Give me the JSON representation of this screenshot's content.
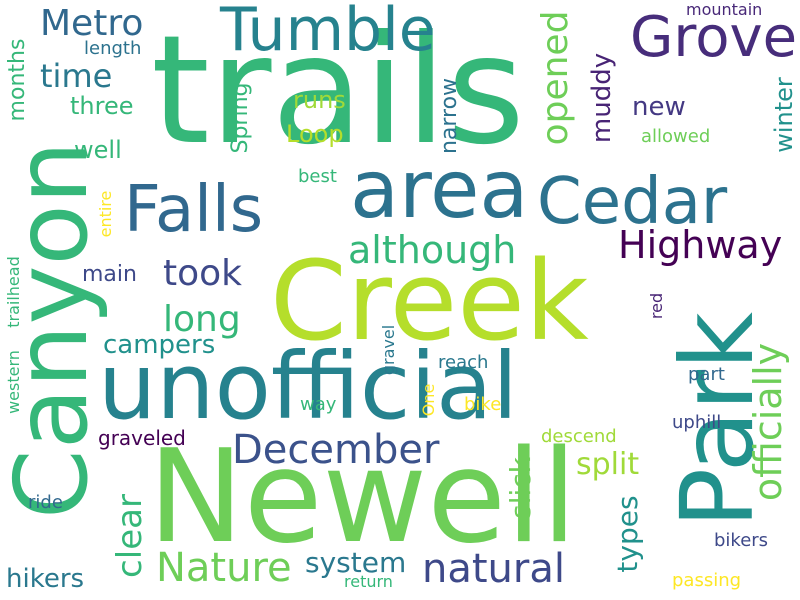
{
  "word_cloud": {
    "words": [
      {
        "id": "trails",
        "text": "trails",
        "color": "#35b779"
      },
      {
        "id": "park",
        "text": "Park",
        "color": "#21918c"
      },
      {
        "id": "creek",
        "text": "Creek",
        "color": "#b5de2b"
      },
      {
        "id": "canyon",
        "text": "Canyon",
        "color": "#35b779"
      },
      {
        "id": "newell",
        "text": "Newell",
        "color": "#6ece58"
      },
      {
        "id": "unofficial",
        "text": "unofficial",
        "color": "#26828e"
      },
      {
        "id": "area",
        "text": "area",
        "color": "#2c728e"
      },
      {
        "id": "cedar",
        "text": "Cedar",
        "color": "#2c728e"
      },
      {
        "id": "tumble",
        "text": "Tumble",
        "color": "#26828e"
      },
      {
        "id": "falls",
        "text": "Falls",
        "color": "#31688e"
      },
      {
        "id": "grove",
        "text": "Grove",
        "color": "#472d7b"
      },
      {
        "id": "metro",
        "text": "Metro",
        "color": "#31688e"
      },
      {
        "id": "highway",
        "text": "Highway",
        "color": "#440154"
      },
      {
        "id": "although",
        "text": "although",
        "color": "#35b779"
      },
      {
        "id": "december",
        "text": "December",
        "color": "#3b528b"
      },
      {
        "id": "natural",
        "text": "natural",
        "color": "#3e4989"
      },
      {
        "id": "officially",
        "text": "officially",
        "color": "#6ece58"
      },
      {
        "id": "opened",
        "text": "opened",
        "color": "#6ece58"
      },
      {
        "id": "nature",
        "text": "Nature",
        "color": "#6ece58"
      },
      {
        "id": "took",
        "text": "took",
        "color": "#3e4989"
      },
      {
        "id": "time",
        "text": "time",
        "color": "#2a788e"
      },
      {
        "id": "long",
        "text": "long",
        "color": "#35b779"
      },
      {
        "id": "clear",
        "text": "clear",
        "color": "#35b779"
      },
      {
        "id": "split",
        "text": "split",
        "color": "#a0da39"
      },
      {
        "id": "slick",
        "text": "slick",
        "color": "#6ece58"
      },
      {
        "id": "types",
        "text": "types",
        "color": "#21918c"
      },
      {
        "id": "system",
        "text": "system",
        "color": "#2a788e"
      },
      {
        "id": "hikers",
        "text": "hikers",
        "color": "#2a788e"
      },
      {
        "id": "campers",
        "text": "campers",
        "color": "#21918c"
      },
      {
        "id": "new",
        "text": "new",
        "color": "#443983"
      },
      {
        "id": "muddy",
        "text": "muddy",
        "color": "#482475"
      },
      {
        "id": "winter",
        "text": "winter",
        "color": "#21918c"
      },
      {
        "id": "narrow",
        "text": "narrow",
        "color": "#2c728e"
      },
      {
        "id": "spring",
        "text": "Spring",
        "color": "#35b779"
      },
      {
        "id": "loop",
        "text": "Loop",
        "color": "#b5de2b"
      },
      {
        "id": "runs",
        "text": "runs",
        "color": "#a0da39"
      },
      {
        "id": "well",
        "text": "well",
        "color": "#35b779"
      },
      {
        "id": "three",
        "text": "three",
        "color": "#35b779"
      },
      {
        "id": "main",
        "text": "main",
        "color": "#3e4989"
      },
      {
        "id": "months",
        "text": "months",
        "color": "#35b779"
      },
      {
        "id": "graveled",
        "text": "graveled",
        "color": "#440154"
      },
      {
        "id": "mountain",
        "text": "mountain",
        "color": "#482878"
      },
      {
        "id": "length",
        "text": "length",
        "color": "#2c728e"
      },
      {
        "id": "allowed",
        "text": "allowed",
        "color": "#6ece58"
      },
      {
        "id": "best",
        "text": "best",
        "color": "#35b779"
      },
      {
        "id": "entire",
        "text": "entire",
        "color": "#fde725"
      },
      {
        "id": "trailhead",
        "text": "trailhead",
        "color": "#35b779"
      },
      {
        "id": "western",
        "text": "western",
        "color": "#35b779"
      },
      {
        "id": "red",
        "text": "red",
        "color": "#482475"
      },
      {
        "id": "gravel",
        "text": "gravel",
        "color": "#2a788e"
      },
      {
        "id": "reach",
        "text": "reach",
        "color": "#2a788e"
      },
      {
        "id": "part",
        "text": "part",
        "color": "#31688e"
      },
      {
        "id": "way",
        "text": "way",
        "color": "#35b779"
      },
      {
        "id": "one",
        "text": "One",
        "color": "#fde725"
      },
      {
        "id": "bike",
        "text": "bike",
        "color": "#fde725"
      },
      {
        "id": "uphill",
        "text": "uphill",
        "color": "#3e4989"
      },
      {
        "id": "descend",
        "text": "descend",
        "color": "#a0da39"
      },
      {
        "id": "ride",
        "text": "ride",
        "color": "#31688e"
      },
      {
        "id": "bikers",
        "text": "bikers",
        "color": "#3e4989"
      },
      {
        "id": "return",
        "text": "return",
        "color": "#35b779"
      },
      {
        "id": "passing",
        "text": "passing",
        "color": "#fde725"
      }
    ]
  }
}
